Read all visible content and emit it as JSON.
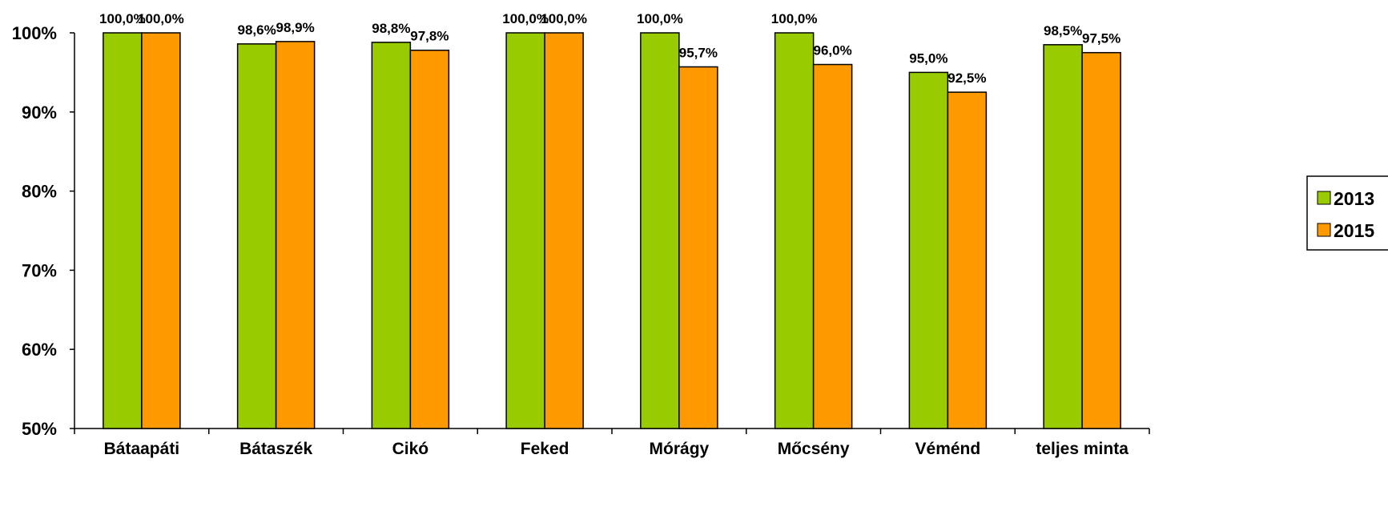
{
  "chart_data": {
    "type": "bar",
    "categories": [
      "Bátaapáti",
      "Bátaszék",
      "Cikó",
      "Feked",
      "Mórágy",
      "Mőcsény",
      "Véménd",
      "teljes minta"
    ],
    "series": [
      {
        "name": "2013",
        "color": "#99CC00",
        "values": [
          100.0,
          98.6,
          98.8,
          100.0,
          100.0,
          100.0,
          95.0,
          98.5
        ],
        "labels": [
          "100,0%",
          "98,6%",
          "98,8%",
          "100,0%",
          "100,0%",
          "100,0%",
          "95,0%",
          "98,5%"
        ]
      },
      {
        "name": "2015",
        "color": "#FF9900",
        "values": [
          100.0,
          98.9,
          97.8,
          100.0,
          95.7,
          96.0,
          92.5,
          97.5
        ],
        "labels": [
          "100,0%",
          "98,9%",
          "97,8%",
          "100,0%",
          "95,7%",
          "96,0%",
          "92,5%",
          "97,5%"
        ]
      }
    ],
    "ylim": [
      50,
      100
    ],
    "yticks": [
      50,
      60,
      70,
      80,
      90,
      100
    ],
    "ytick_labels": [
      "50%",
      "60%",
      "70%",
      "80%",
      "90%",
      "100%"
    ],
    "title": "",
    "xlabel": "",
    "ylabel": "",
    "legend_position": "right",
    "grid": false
  }
}
